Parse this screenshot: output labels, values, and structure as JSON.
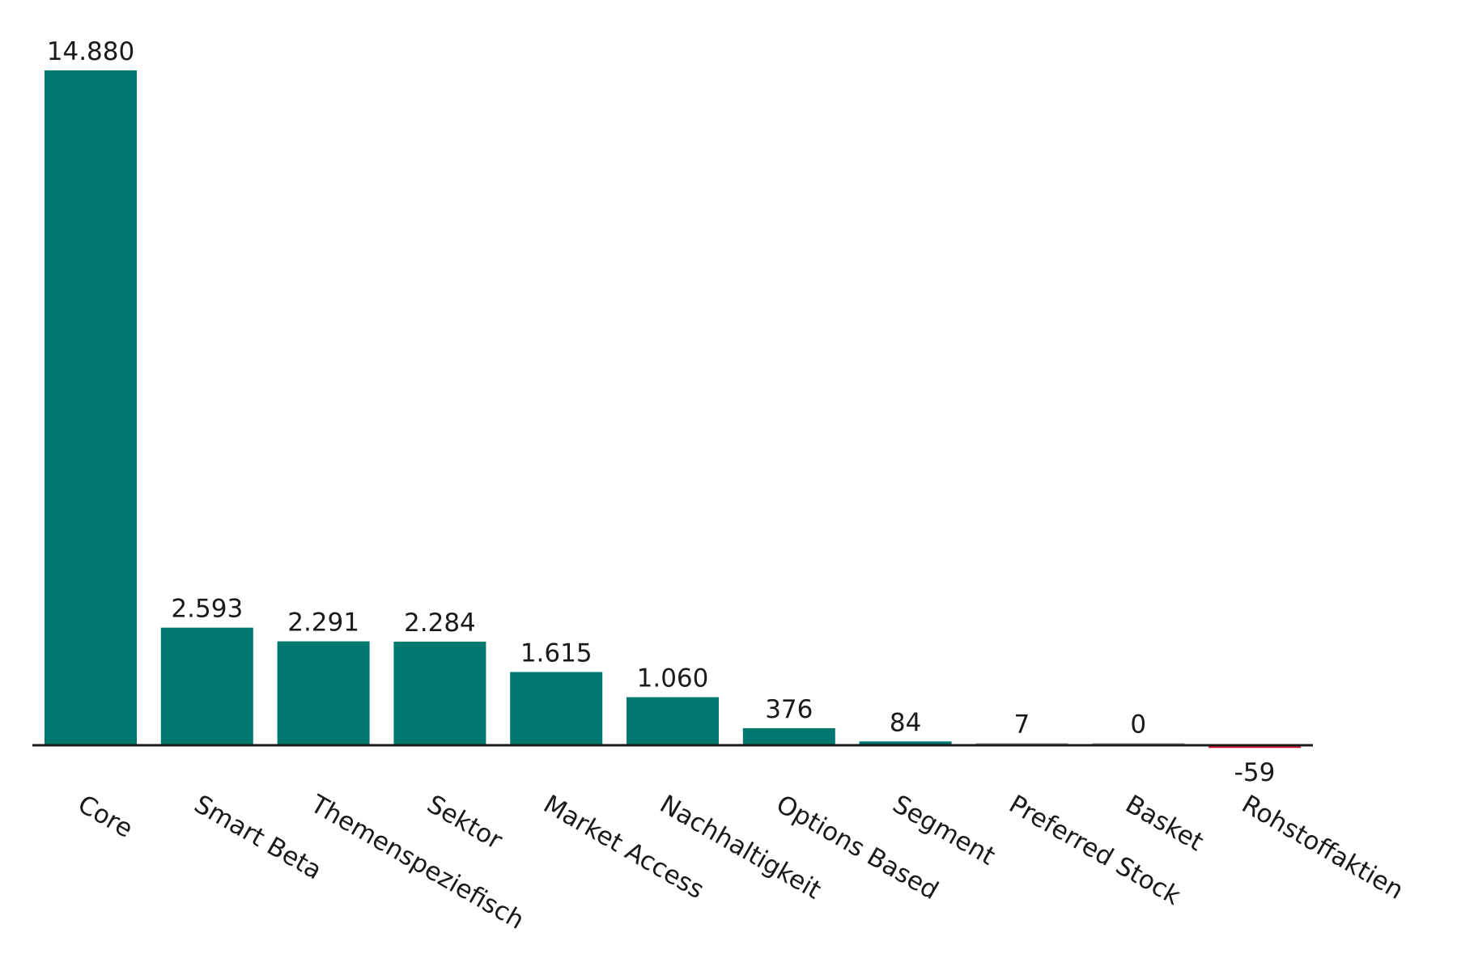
{
  "chart_data": {
    "type": "bar",
    "title": "",
    "xlabel": "",
    "ylabel": "",
    "categories": [
      "Core",
      "Smart Beta",
      "Themenspeziefisch",
      "Sektor",
      "Market Access",
      "Nachhaltigkeit",
      "Options Based",
      "Segment",
      "Preferred Stock",
      "Basket",
      "Rohstoffaktien"
    ],
    "values": [
      14880,
      2593,
      2291,
      2284,
      1615,
      1060,
      376,
      84,
      7,
      0,
      -59
    ],
    "value_labels": [
      "14.880",
      "2.593",
      "2.291",
      "2.284",
      "1.615",
      "1.060",
      "376",
      "84",
      "7",
      "0",
      "-59"
    ],
    "ylim": [
      -59,
      14880
    ],
    "grid": false,
    "legend": "none",
    "colors": {
      "positive": "#00786f",
      "zero": "#9a9a9a",
      "negative": "#d2102d",
      "axis": "#1a1a1a"
    }
  }
}
